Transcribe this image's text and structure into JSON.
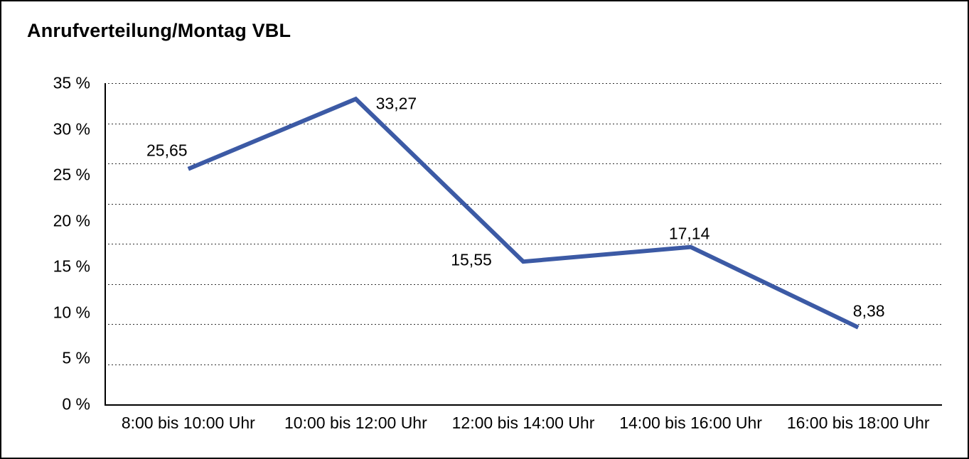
{
  "title": "Anrufverteilung/Montag VBL",
  "chart_data": {
    "type": "line",
    "title": "Anrufverteilung/Montag VBL",
    "categories": [
      "8:00 bis 10:00 Uhr",
      "10:00 bis 12:00 Uhr",
      "12:00 bis 14:00 Uhr",
      "14:00 bis 16:00 Uhr",
      "16:00 bis 18:00 Uhr"
    ],
    "values": [
      25.65,
      33.27,
      15.55,
      17.14,
      8.38
    ],
    "value_labels": [
      "25,65",
      "33,27",
      "15,55",
      "17,14",
      "8,38"
    ],
    "unit": "%",
    "xlabel": "",
    "ylabel": "",
    "ylim": [
      0,
      35
    ],
    "y_tick_labels": [
      "35 %",
      "30 %",
      "25 %",
      "20 %",
      "15 %",
      "10 %",
      "5 %",
      "0 %"
    ],
    "grid": "horizontal dotted",
    "legend_position": "none",
    "line_color": "#3C5AA5",
    "text_color": "#000000",
    "background_color": "#FFFFFF",
    "frame_border_color": "#000000"
  }
}
